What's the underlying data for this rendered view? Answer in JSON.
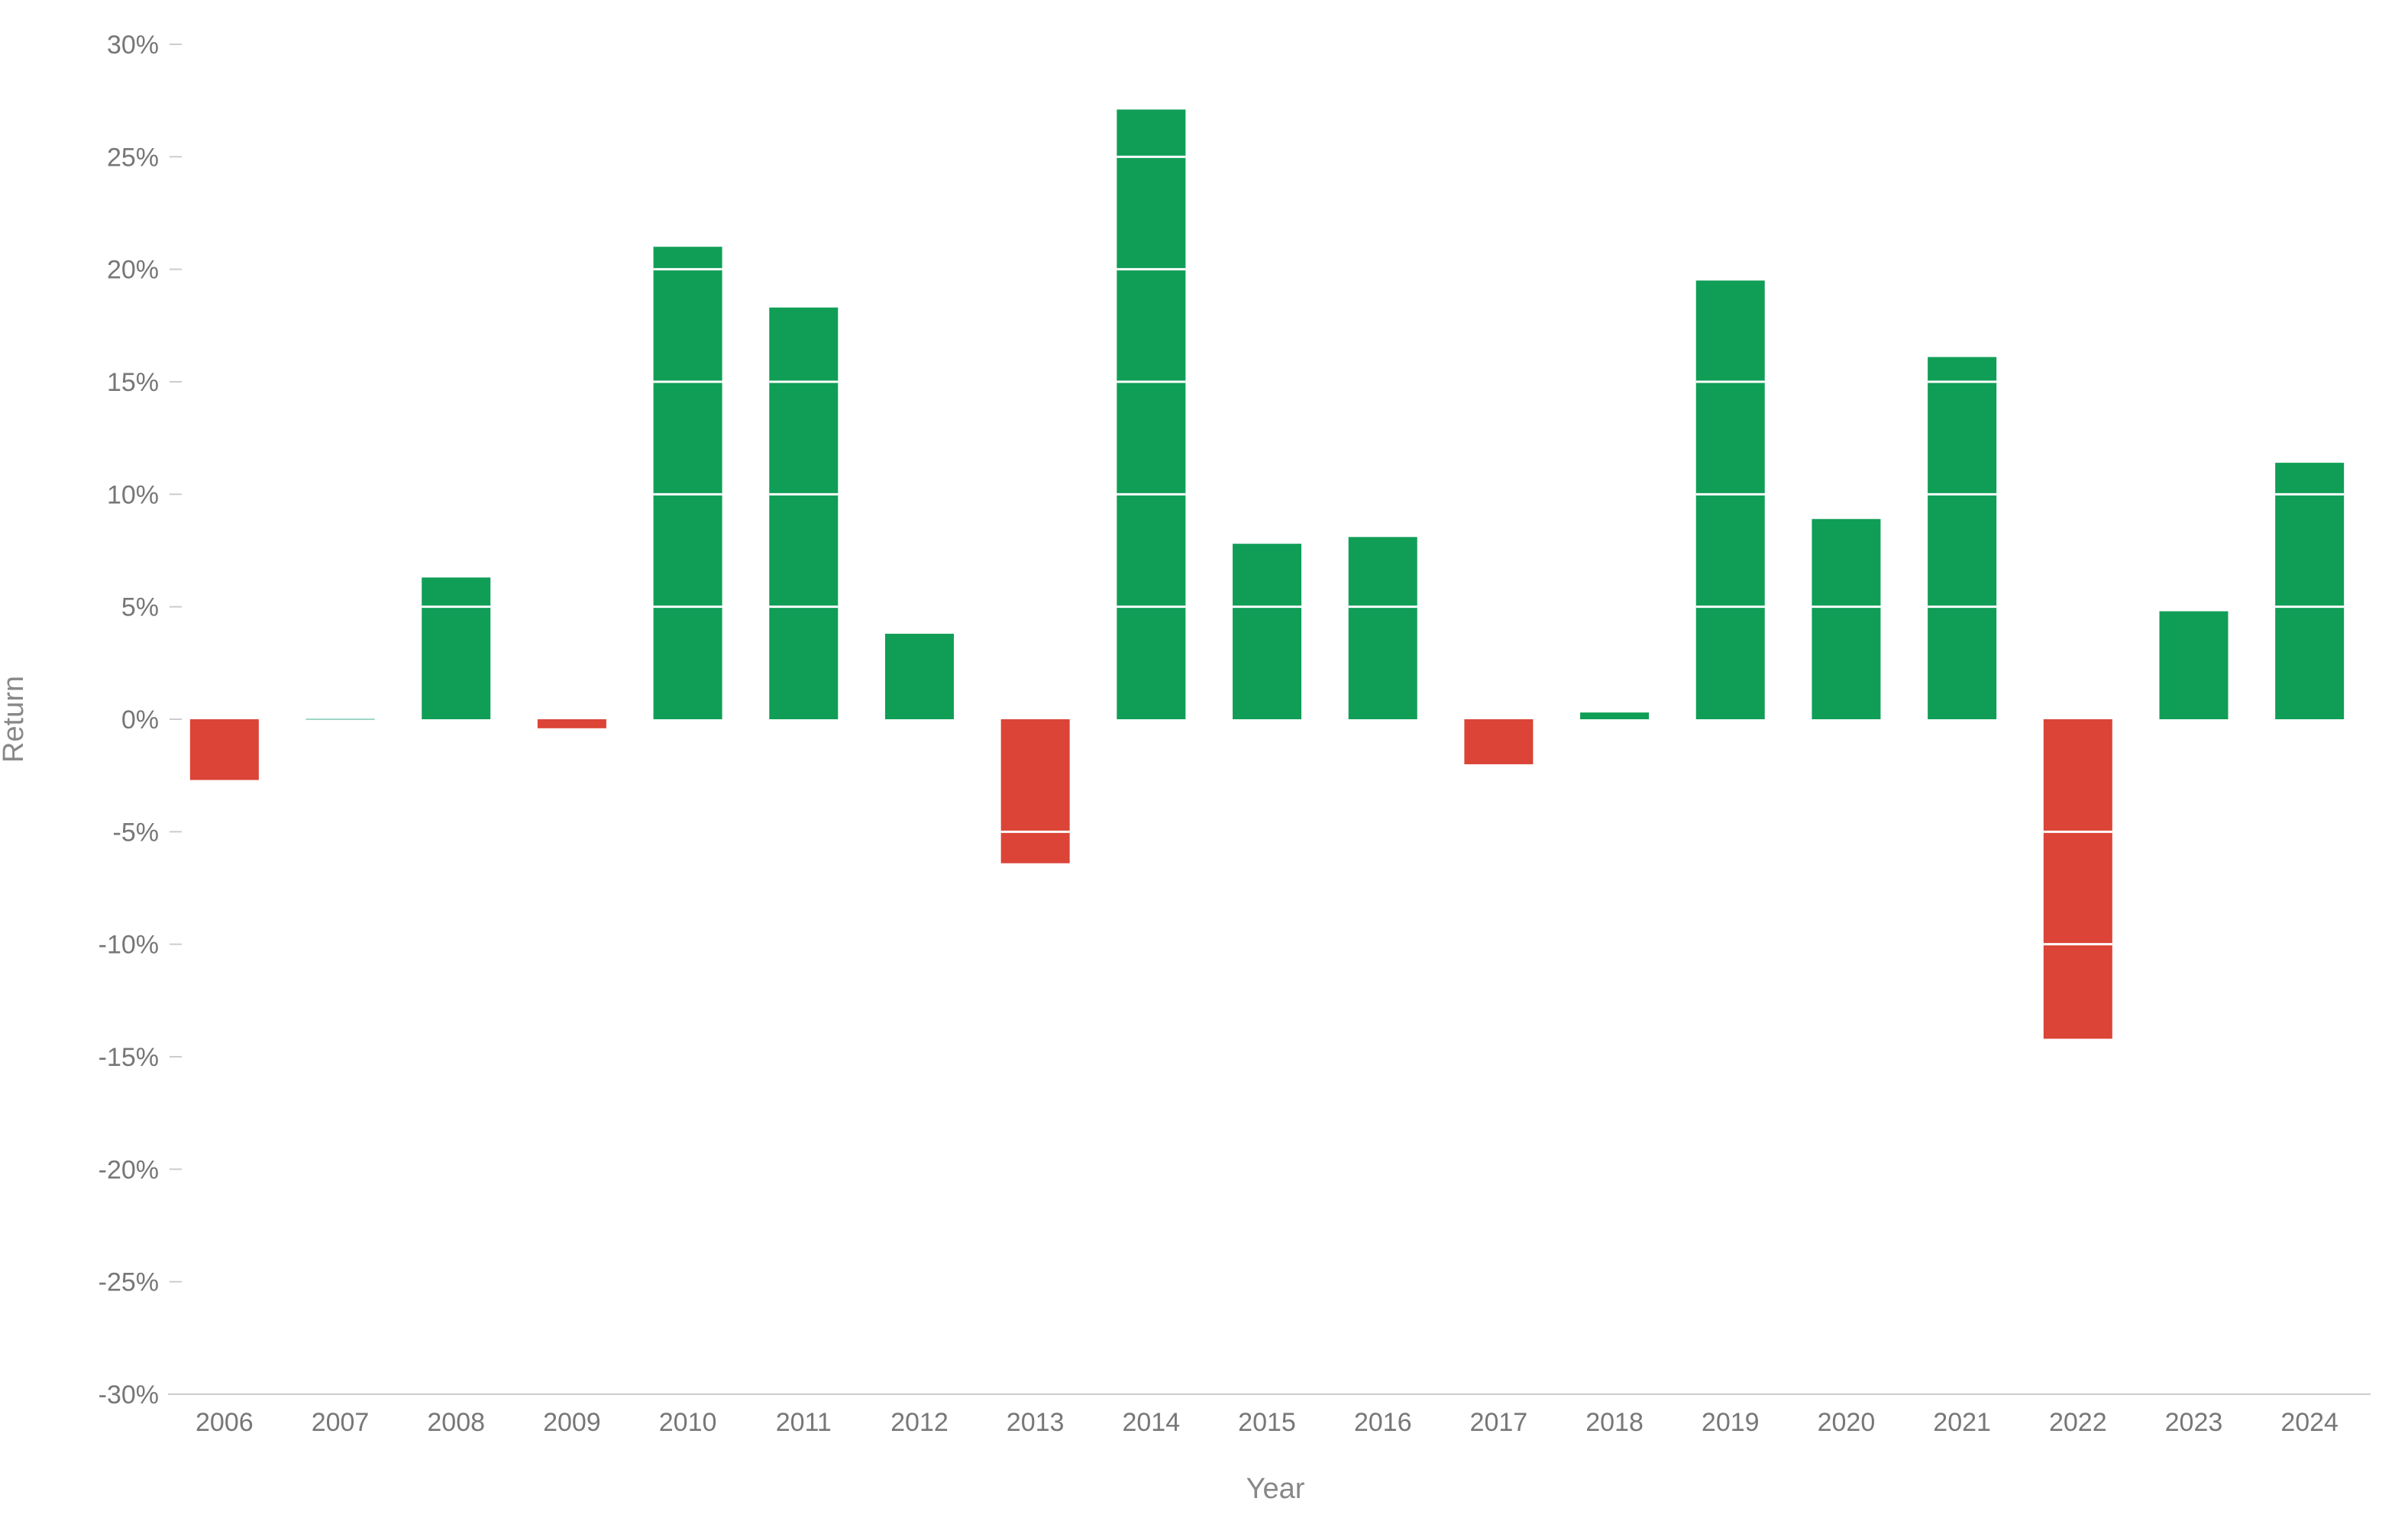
{
  "chart_data": {
    "type": "bar",
    "title": "",
    "xlabel": "Year",
    "ylabel": "Return",
    "ylim": [
      -30,
      30
    ],
    "yticks": [
      30,
      25,
      20,
      15,
      10,
      5,
      0,
      -5,
      -10,
      -15,
      -20,
      -25,
      -30
    ],
    "ytick_labels": [
      "30%",
      "25%",
      "20%",
      "15%",
      "10%",
      "5%",
      "0%",
      "-5%",
      "-10%",
      "-15%",
      "-20%",
      "-25%",
      "-30%"
    ],
    "categories": [
      "2006",
      "2007",
      "2008",
      "2009",
      "2010",
      "2011",
      "2012",
      "2013",
      "2014",
      "2015",
      "2016",
      "2017",
      "2018",
      "2019",
      "2020",
      "2021",
      "2022",
      "2023",
      "2024"
    ],
    "values": [
      -2.7,
      0.05,
      6.3,
      -0.4,
      21.0,
      18.3,
      3.8,
      -6.4,
      27.1,
      7.8,
      8.1,
      -2.0,
      0.3,
      19.5,
      8.9,
      16.1,
      -14.2,
      4.8,
      11.4
    ],
    "grid": false,
    "legend": "none",
    "colors": {
      "positive": "#109e57",
      "negative": "#db4437",
      "axis_text": "#777777",
      "axis_title": "#888888",
      "tick_line": "#cccccc",
      "band_line": "#ffffff"
    }
  }
}
